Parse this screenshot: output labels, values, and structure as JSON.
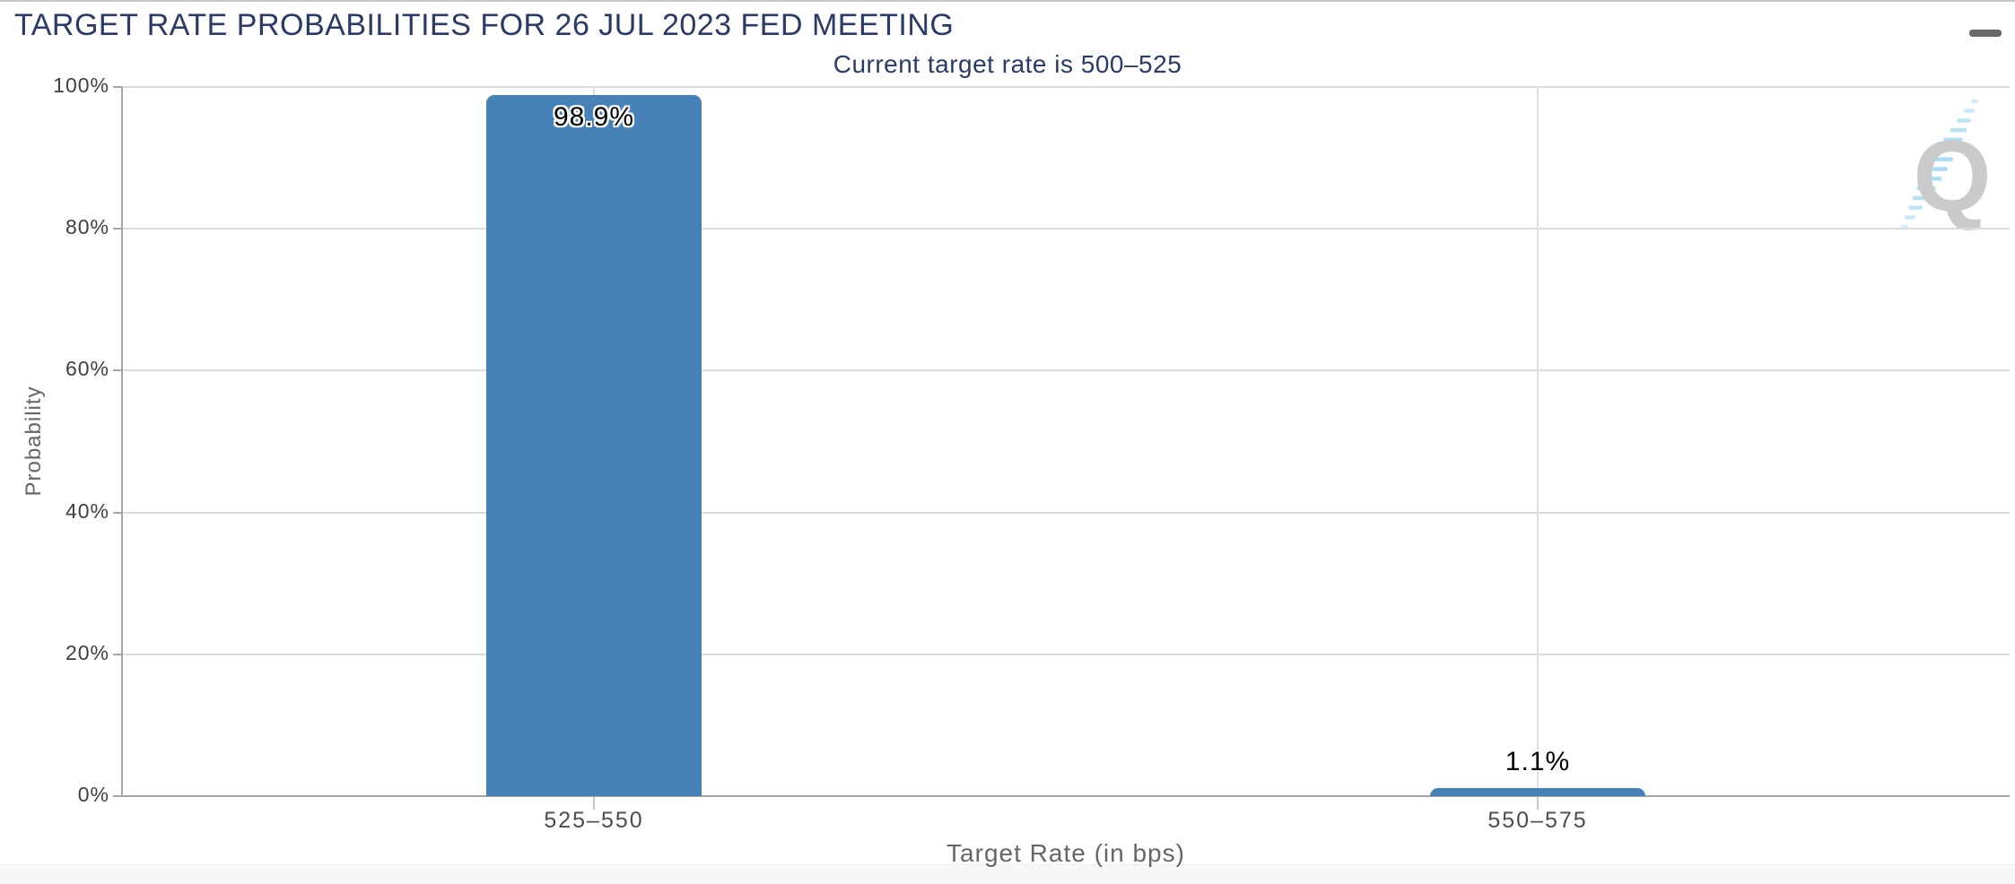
{
  "header": {
    "menu_icon": "hamburger-menu"
  },
  "chart_data": {
    "type": "bar",
    "title": "TARGET RATE PROBABILITIES FOR 26 JUL 2023 FED MEETING",
    "subtitle": "Current target rate is 500–525",
    "categories": [
      "525–550",
      "550–575"
    ],
    "values": [
      98.9,
      1.1
    ],
    "value_labels": [
      "98.9%",
      "1.1%"
    ],
    "xlabel": "Target Rate (in bps)",
    "ylabel": "Probability",
    "ylim": [
      0,
      100
    ],
    "ytick_step": 20,
    "ytick_labels": [
      "0%",
      "20%",
      "40%",
      "60%",
      "80%",
      "100%"
    ],
    "grid": true,
    "legend": "none",
    "bar_color": "#4681B8",
    "title_color": "#2B3A66",
    "axis_color": "#A6A6A6",
    "gridline_color": "#DCDCDC",
    "watermark_letter": "Q"
  }
}
